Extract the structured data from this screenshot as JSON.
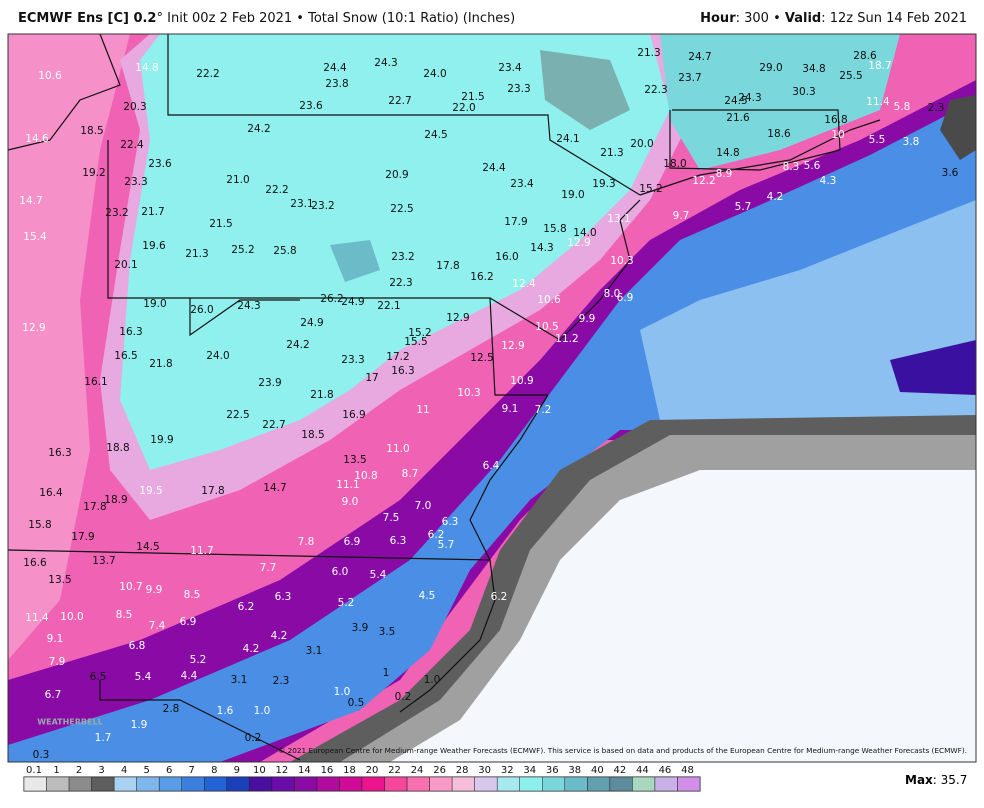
{
  "header": {
    "title_bold": "ECMWF Ens [C] 0.2",
    "title_rest": "° Init 00z 2 Feb 2021 • Total Snow (10:1 Ratio) (Inches)",
    "hour_label": "Hour",
    "hour_value": ": 300 • ",
    "valid_label": "Valid",
    "valid_value": ": 12z Sun 14 Feb 2021"
  },
  "map": {
    "labels": [
      "10.6",
      "14.8",
      "22.2",
      "24.4",
      "24.3",
      "23.8",
      "24.0",
      "23.4",
      "21.3",
      "24.7",
      "29.0",
      "34.8",
      "28.6",
      "18.7",
      "25.5",
      "23.7",
      "22.3",
      "30.3",
      "24.3",
      "24.5",
      "21.5",
      "22.0",
      "23.3",
      "22.7",
      "23.6",
      "20.3",
      "11.4",
      "5.8",
      "2.3",
      "18.5",
      "24.2",
      "24.5",
      "21.6",
      "18.6",
      "16.8",
      "14.6",
      "22.4",
      "24.1",
      "21.3",
      "20.0",
      "10",
      "5.5",
      "3.8",
      "14.8",
      "18.0",
      "23.6",
      "19.2",
      "23.3",
      "21.0",
      "22.2",
      "20.9",
      "24.4",
      "23.4",
      "19.3",
      "15.2",
      "12.2",
      "8.9",
      "8.3",
      "5.6",
      "4.3",
      "3.6",
      "14.7",
      "19.0",
      "23.1",
      "23.2",
      "22.5",
      "5.7",
      "4.2",
      "23.2",
      "21.7",
      "9.7",
      "13.1",
      "17.9",
      "15.8",
      "21.5",
      "14.0",
      "15.4",
      "19.6",
      "25.2",
      "25.8",
      "14.3",
      "12.9",
      "21.3",
      "16.0",
      "23.2",
      "10.3",
      "20.1",
      "17.8",
      "16.2",
      "22.3",
      "12.4",
      "8.0",
      "6.9",
      "26.2",
      "24.9",
      "10.6",
      "19.0",
      "26.0",
      "24.3",
      "22.1",
      "9.9",
      "12.9",
      "16.3",
      "24.9",
      "12.9",
      "10.5",
      "15.2",
      "11.2",
      "24.2",
      "15.5",
      "12.9",
      "16.5",
      "24.0",
      "23.3",
      "17.2",
      "12.5",
      "21.8",
      "16.3",
      "16.1",
      "23.9",
      "17",
      "10.9",
      "21.8",
      "10.3",
      "9.1",
      "7.2",
      "16.9",
      "11",
      "22.5",
      "22.7",
      "18.5",
      "19.9",
      "18.8",
      "16.3",
      "11.0",
      "13.5",
      "6.4",
      "10.8",
      "8.7",
      "11.1",
      "16.4",
      "19.5",
      "17.8",
      "14.7",
      "9.0",
      "18.9",
      "17.8",
      "7.0",
      "7.5",
      "6.3",
      "15.8",
      "6.2",
      "17.9",
      "7.8",
      "6.9",
      "6.3",
      "5.7",
      "14.5",
      "11.7",
      "16.6",
      "13.7",
      "7.7",
      "6.0",
      "5.4",
      "13.5",
      "10.7",
      "9.9",
      "8.5",
      "6.3",
      "6.2",
      "5.2",
      "4.5",
      "6.2",
      "8.5",
      "11.4",
      "10.0",
      "7.4",
      "6.9",
      "3.9",
      "3.5",
      "9.1",
      "6.8",
      "4.2",
      "4.2",
      "3.1",
      "5.2",
      "7.9",
      "6.5",
      "5.4",
      "4.4",
      "3.1",
      "2.3",
      "1",
      "1.0",
      "1.0",
      "0.2",
      "6.7",
      "0.5",
      "2.8",
      "1.6",
      "1.0",
      "1.9",
      "1.7",
      "0.2",
      "0.3"
    ],
    "logo": "WEATHERBELL",
    "copyright": "© 2021 European Centre for Medium-range Weather Forecasts (ECMWF). This service is based on data and products of the European Centre for Medium-range Weather Forecasts (ECMWF)."
  },
  "legend": {
    "labels": [
      "0.1",
      "1",
      "2",
      "3",
      "4",
      "5",
      "6",
      "7",
      "8",
      "9",
      "10",
      "12",
      "14",
      "16",
      "18",
      "20",
      "22",
      "24",
      "26",
      "28",
      "30",
      "32",
      "34",
      "36",
      "38",
      "40",
      "42",
      "44",
      "46",
      "48"
    ],
    "colors": [
      "#e8e8e8",
      "#bdbdbd",
      "#8c8c8c",
      "#5e5e5e",
      "#a8d2f0",
      "#7fb6ec",
      "#5a9de6",
      "#3d7fde",
      "#2462d6",
      "#1a3fb8",
      "#4b0fa0",
      "#6a0ca8",
      "#8a0aa6",
      "#b00a9e",
      "#d00c96",
      "#ec148c",
      "#f5479c",
      "#f870b0",
      "#f89ac6",
      "#f5bfdc",
      "#d8c8ec",
      "#a8e8f0",
      "#8ef0ee",
      "#7ad8dc",
      "#6bbcc8",
      "#62a0b0",
      "#5e8c9c",
      "#a8d8c0",
      "#c8b0e8",
      "#d090e8"
    ],
    "max_label": "Max",
    "max_value": ": 35.7"
  }
}
